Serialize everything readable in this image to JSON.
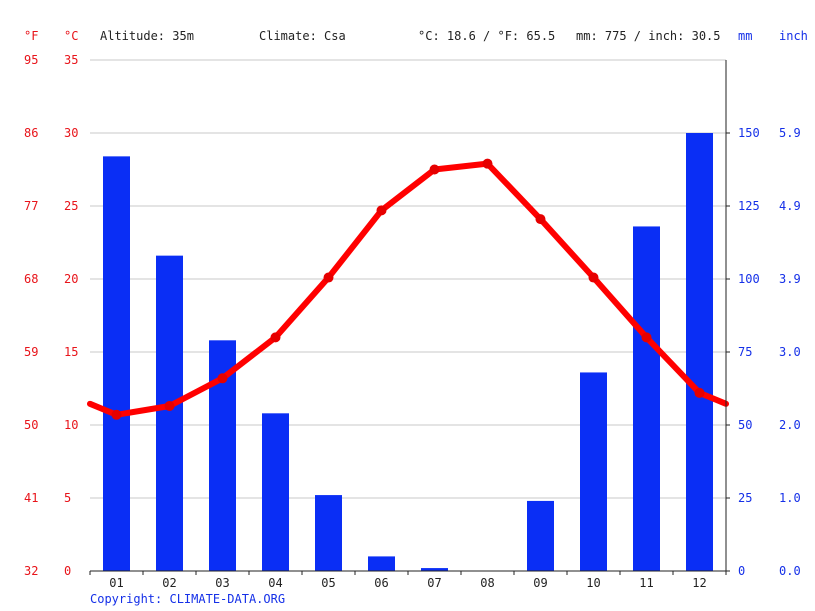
{
  "header": {
    "f_unit": "°F",
    "c_unit": "°C",
    "altitude": "Altitude: 35m",
    "climate": "Climate: Csa",
    "temp_avg": "°C: 18.6 / °F: 65.5",
    "precip_total": "mm: 775 / inch: 30.5",
    "mm_unit": "mm",
    "inch_unit": "inch"
  },
  "copyright": "Copyright: CLIMATE-DATA.ORG",
  "colors": {
    "temperature": "#ff0000",
    "precipitation": "#0a2ef5",
    "left_axis": "#e8141a",
    "right_axis": "#1530e8"
  },
  "chart_data": {
    "type": "bar",
    "categories": [
      "01",
      "02",
      "03",
      "04",
      "05",
      "06",
      "07",
      "08",
      "09",
      "10",
      "11",
      "12"
    ],
    "series": [
      {
        "values": [
          142,
          108,
          79,
          54,
          26,
          5,
          1,
          0,
          24,
          68,
          118,
          150
        ]
      },
      {
        "type": "line",
        "values": [
          10.7,
          11.3,
          13.2,
          16.0,
          20.1,
          24.7,
          27.5,
          27.9,
          24.1,
          20.1,
          16.0,
          12.2
        ]
      }
    ],
    "left_ticks_c": [
      "35",
      "30",
      "25",
      "20",
      "15",
      "10",
      "5",
      "0"
    ],
    "left_ticks_f": [
      "95",
      "86",
      "77",
      "68",
      "59",
      "50",
      "41",
      "32"
    ],
    "right_ticks_mm": [
      "150",
      "125",
      "100",
      "75",
      "50",
      "25",
      "0"
    ],
    "right_ticks_inch": [
      "5.9",
      "4.9",
      "3.9",
      "3.0",
      "2.0",
      "1.0",
      "0.0"
    ],
    "ylim_c": [
      0,
      35
    ],
    "ylim_mm": [
      0,
      175
    ],
    "grid": true
  }
}
